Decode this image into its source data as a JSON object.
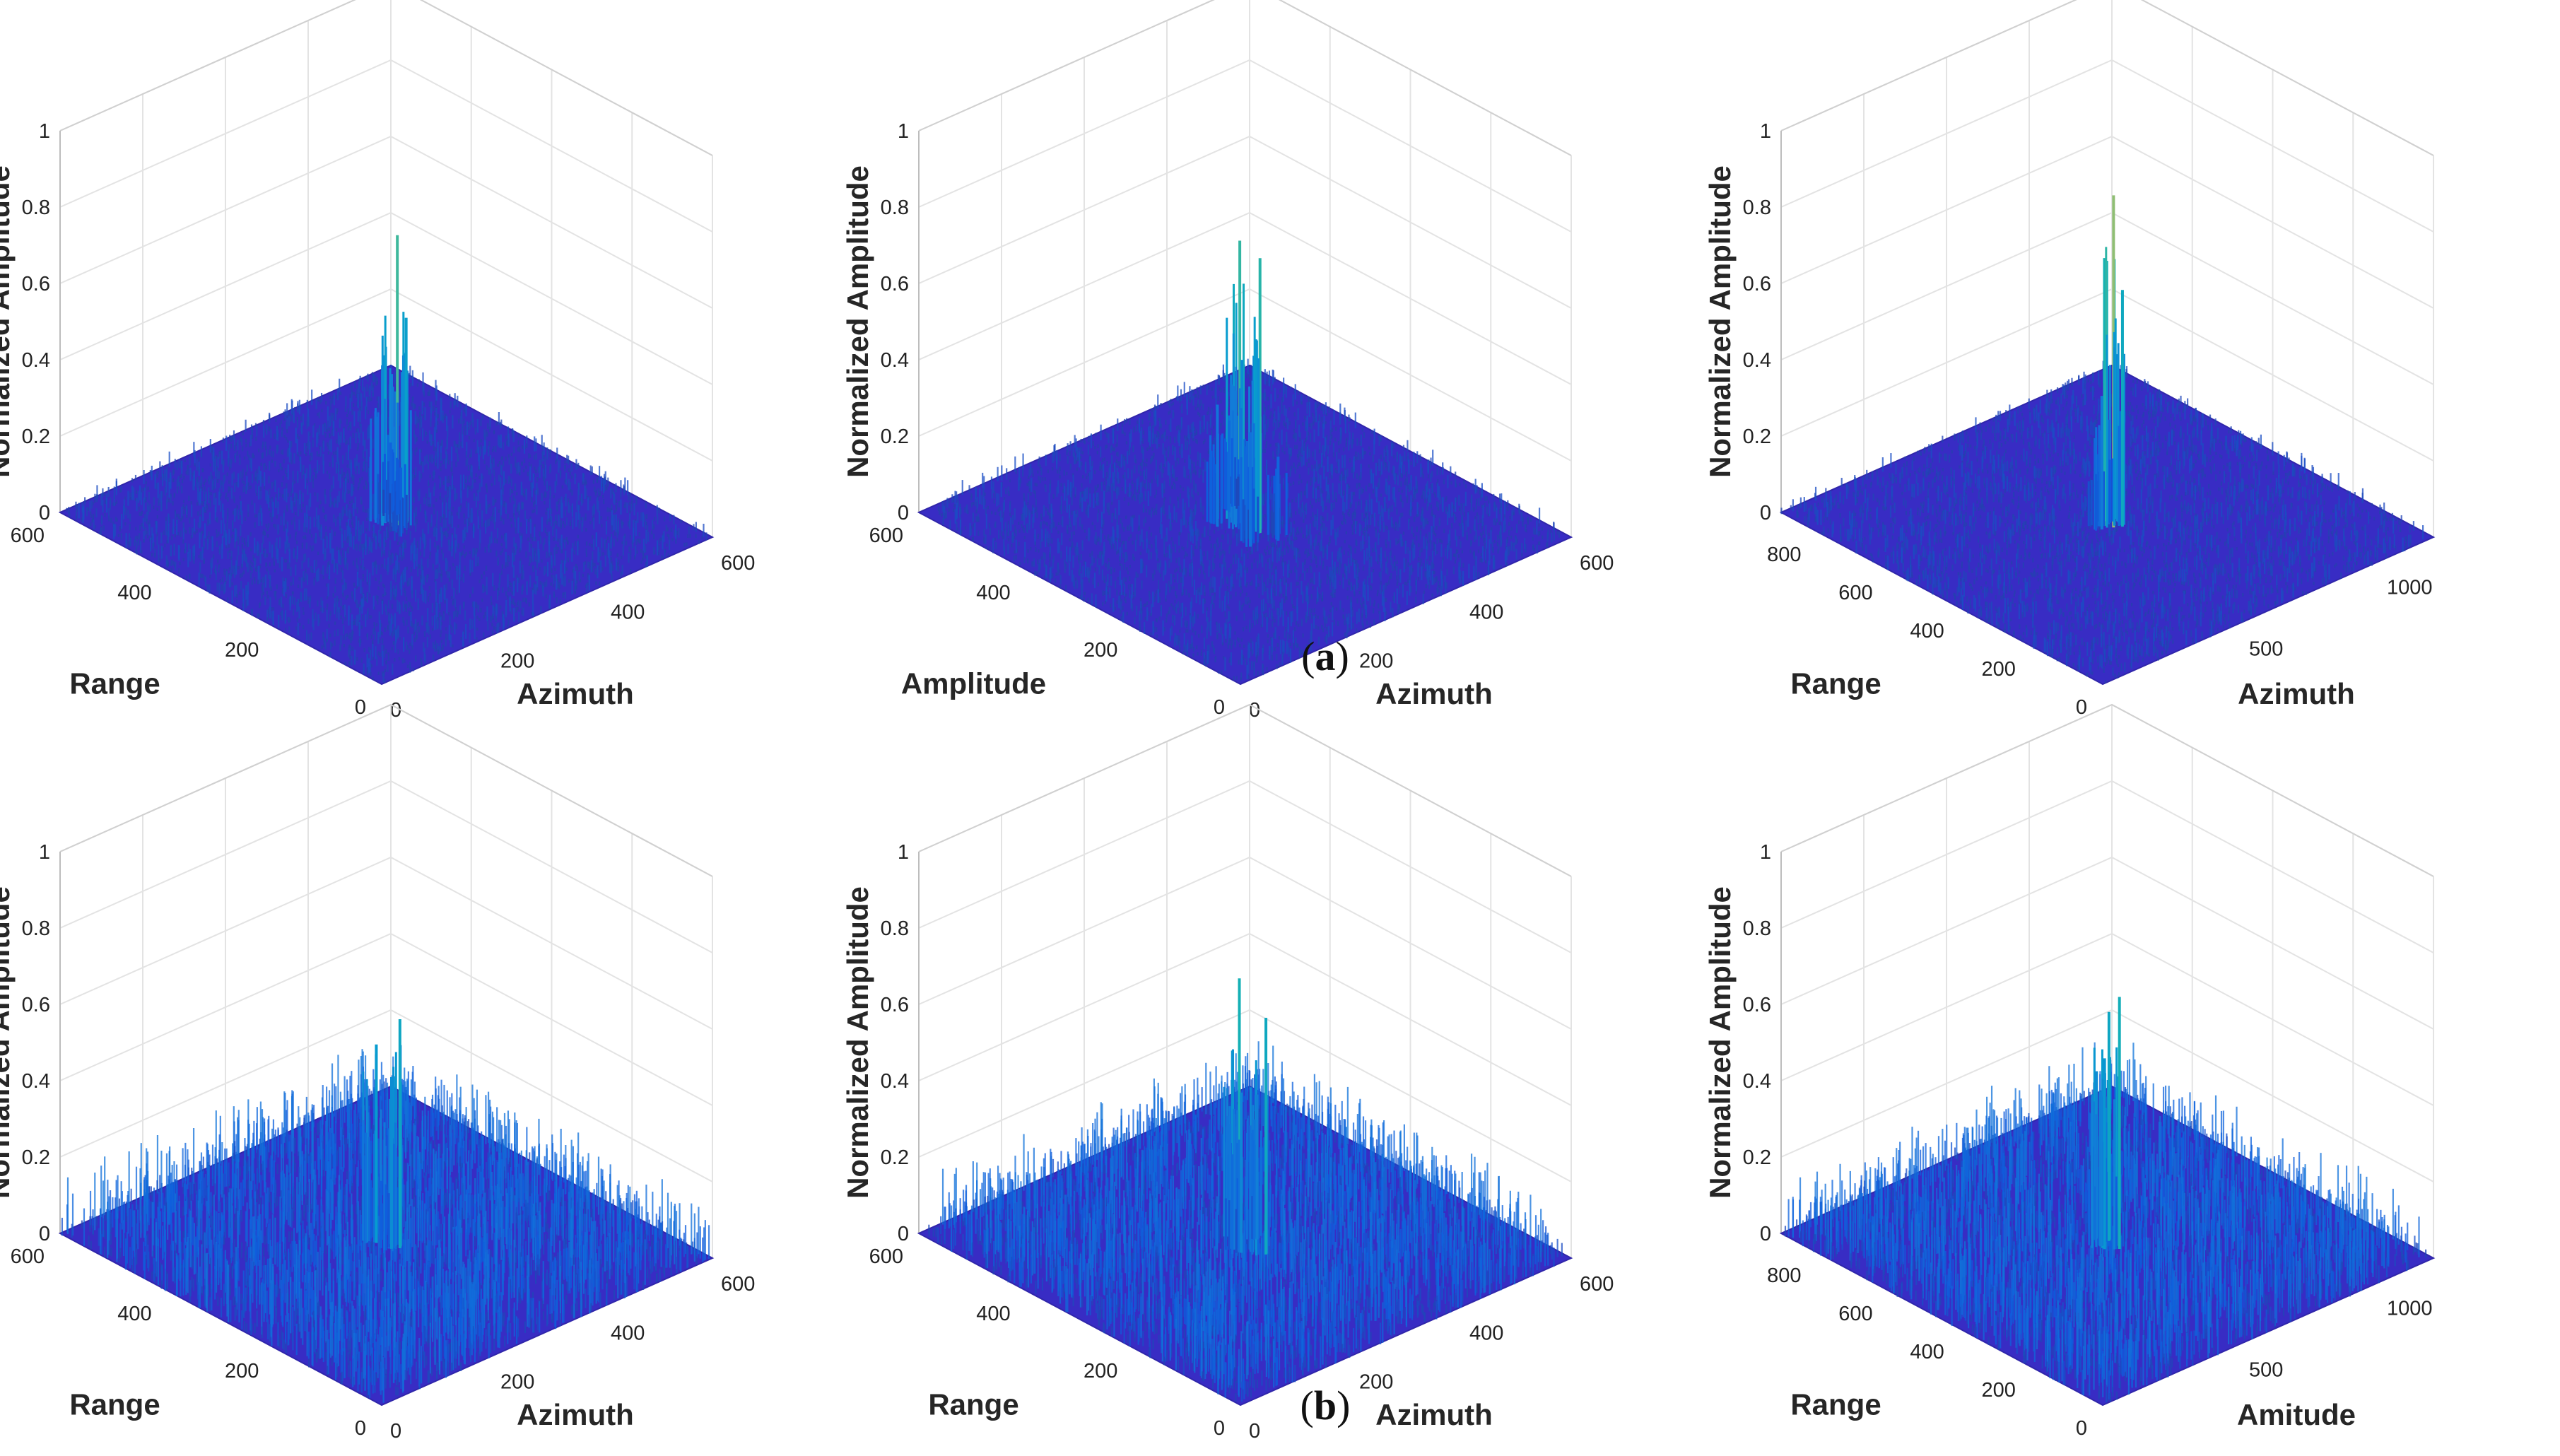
{
  "figure": {
    "captions": [
      {
        "open": "(",
        "letter": "a",
        "close": ")"
      },
      {
        "open": "(",
        "letter": "b",
        "close": ")"
      }
    ]
  },
  "chart_data": [
    {
      "id": "a1",
      "row": "a",
      "type": "surface3d",
      "zlabel": "Normalized Amplitude",
      "left_label": "Range",
      "right_label": "Azimuth",
      "zticks": [
        "0",
        "0.2",
        "0.4",
        "0.6",
        "0.8",
        "1"
      ],
      "zlim": [
        0,
        1
      ],
      "left_ticks": [
        "600",
        "400",
        "200",
        "0"
      ],
      "right_ticks": [
        "0",
        "200",
        "400",
        "600"
      ],
      "range_max": 600,
      "azimuth_max": 600,
      "noise_level": 0.03,
      "peaks": [
        {
          "u": 0.5,
          "v": 0.52,
          "z": 0.76
        },
        {
          "u": 0.48,
          "v": 0.53,
          "z": 0.55
        },
        {
          "u": 0.52,
          "v": 0.5,
          "z": 0.42
        },
        {
          "u": 0.46,
          "v": 0.5,
          "z": 0.18
        },
        {
          "u": 0.53,
          "v": 0.54,
          "z": 0.2
        }
      ]
    },
    {
      "id": "a2",
      "row": "a",
      "type": "surface3d",
      "zlabel": "Normalized Amplitude",
      "left_label": "Amplitude",
      "right_label": "Azimuth",
      "zticks": [
        "0",
        "0.2",
        "0.4",
        "0.6",
        "0.8",
        "1"
      ],
      "zlim": [
        0,
        1
      ],
      "left_ticks": [
        "600",
        "400",
        "200",
        "0"
      ],
      "right_ticks": [
        "0",
        "200",
        "400",
        "600"
      ],
      "range_max": 600,
      "azimuth_max": 600,
      "noise_level": 0.03,
      "peaks": [
        {
          "u": 0.47,
          "v": 0.5,
          "z": 0.72
        },
        {
          "u": 0.53,
          "v": 0.5,
          "z": 0.74
        },
        {
          "u": 0.5,
          "v": 0.48,
          "z": 0.45
        },
        {
          "u": 0.44,
          "v": 0.45,
          "z": 0.3
        },
        {
          "u": 0.55,
          "v": 0.46,
          "z": 0.32
        },
        {
          "u": 0.42,
          "v": 0.52,
          "z": 0.22
        },
        {
          "u": 0.58,
          "v": 0.53,
          "z": 0.24
        }
      ]
    },
    {
      "id": "a3",
      "row": "a",
      "type": "surface3d",
      "zlabel": "Normalized Amplitude",
      "left_label": "Range",
      "right_label": "Azimuth",
      "zticks": [
        "0",
        "0.2",
        "0.4",
        "0.6",
        "0.8",
        "1"
      ],
      "zlim": [
        0,
        1
      ],
      "left_ticks": [
        "800",
        "600",
        "400",
        "200",
        "0"
      ],
      "right_ticks": [
        "500",
        "1000"
      ],
      "range_max": 900,
      "azimuth_max": 1200,
      "noise_level": 0.03,
      "peaks": [
        {
          "u": 0.5,
          "v": 0.5,
          "z": 0.87
        },
        {
          "u": 0.49,
          "v": 0.52,
          "z": 0.62
        },
        {
          "u": 0.51,
          "v": 0.48,
          "z": 0.35
        }
      ]
    },
    {
      "id": "b1",
      "row": "b",
      "type": "surface3d",
      "zlabel": "Normalized Amplitude",
      "left_label": "Range",
      "right_label": "Azimuth",
      "zticks": [
        "0",
        "0.2",
        "0.4",
        "0.6",
        "0.8",
        "1"
      ],
      "zlim": [
        0,
        1
      ],
      "left_ticks": [
        "600",
        "400",
        "200",
        "0"
      ],
      "right_ticks": [
        "0",
        "200",
        "400",
        "600"
      ],
      "range_max": 600,
      "azimuth_max": 600,
      "noise_level": 0.12,
      "peaks": [
        {
          "u": 0.49,
          "v": 0.51,
          "z": 0.6
        },
        {
          "u": 0.54,
          "v": 0.49,
          "z": 0.52
        },
        {
          "u": 0.5,
          "v": 0.5,
          "z": 0.45
        }
      ]
    },
    {
      "id": "b2",
      "row": "b",
      "type": "surface3d",
      "zlabel": "Normalized Amplitude",
      "left_label": "Range",
      "right_label": "Azimuth",
      "zticks": [
        "0",
        "0.2",
        "0.4",
        "0.6",
        "0.8",
        "1"
      ],
      "zlim": [
        0,
        1
      ],
      "left_ticks": [
        "600",
        "400",
        "200",
        "0"
      ],
      "right_ticks": [
        "0",
        "200",
        "400",
        "600"
      ],
      "range_max": 600,
      "azimuth_max": 600,
      "noise_level": 0.12,
      "peaks": [
        {
          "u": 0.46,
          "v": 0.5,
          "z": 0.62
        },
        {
          "u": 0.55,
          "v": 0.51,
          "z": 0.68
        },
        {
          "u": 0.5,
          "v": 0.47,
          "z": 0.42
        },
        {
          "u": 0.52,
          "v": 0.54,
          "z": 0.38
        }
      ]
    },
    {
      "id": "b3",
      "row": "b",
      "type": "surface3d",
      "zlabel": "Normalized Amplitude",
      "left_label": "Range",
      "right_label": "Amitude",
      "zticks": [
        "0",
        "0.2",
        "0.4",
        "0.6",
        "0.8",
        "1"
      ],
      "zlim": [
        0,
        1
      ],
      "left_ticks": [
        "800",
        "600",
        "400",
        "200",
        "0"
      ],
      "right_ticks": [
        "500",
        "1000"
      ],
      "range_max": 900,
      "azimuth_max": 1200,
      "noise_level": 0.12,
      "peaks": [
        {
          "u": 0.49,
          "v": 0.5,
          "z": 0.66
        },
        {
          "u": 0.53,
          "v": 0.51,
          "z": 0.6
        },
        {
          "u": 0.51,
          "v": 0.48,
          "z": 0.5
        }
      ]
    }
  ]
}
